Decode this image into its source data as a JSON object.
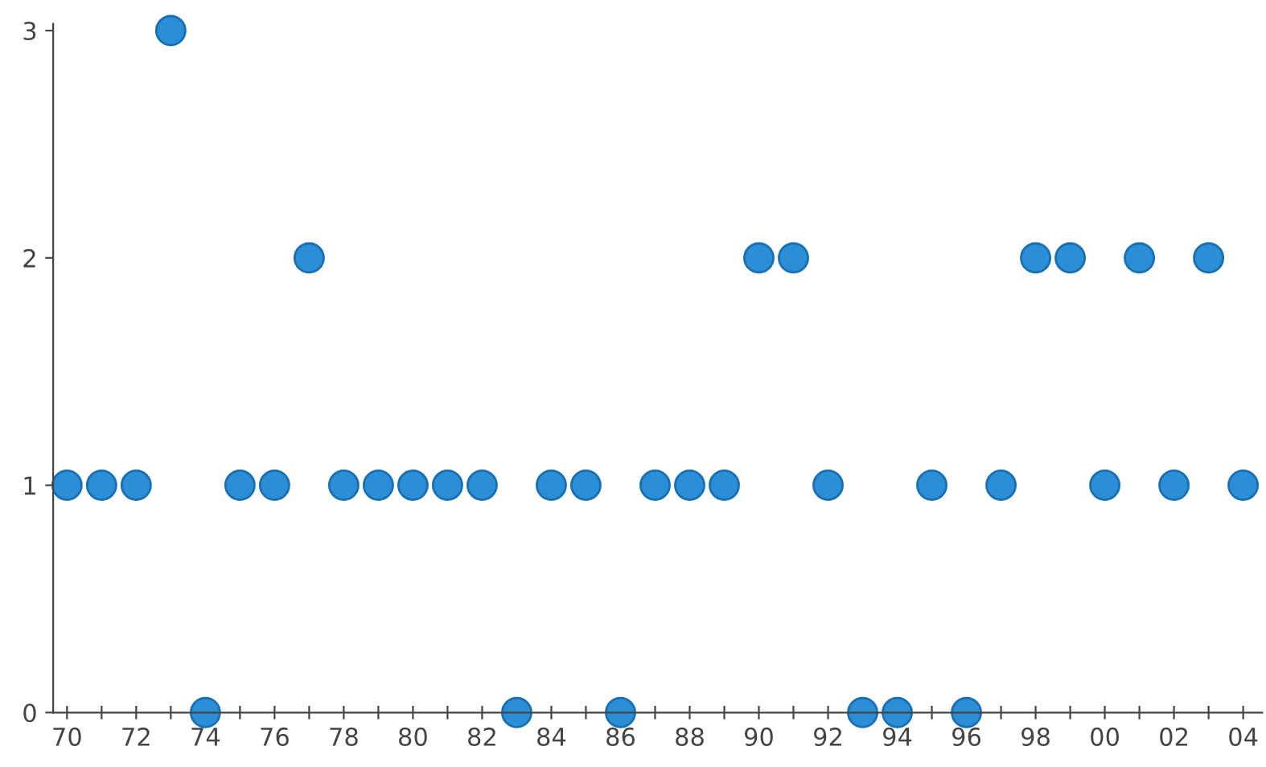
{
  "chart_data": {
    "type": "scatter",
    "categories": [
      "70",
      null,
      "72",
      null,
      "74",
      null,
      "76",
      null,
      "78",
      null,
      "80",
      null,
      "82",
      null,
      "84",
      null,
      "86",
      null,
      "88",
      null,
      "90",
      null,
      "92",
      null,
      "94",
      null,
      "96",
      null,
      "98",
      null,
      "00",
      null,
      "02",
      null,
      "04"
    ],
    "series": [
      {
        "color": "#2a8fd6",
        "values": [
          1,
          1,
          1,
          3,
          0,
          1,
          1,
          2,
          1,
          1,
          1,
          1,
          1,
          0,
          1,
          1,
          0,
          1,
          1,
          1,
          2,
          2,
          1,
          0,
          0,
          1,
          0,
          1,
          2,
          2,
          1,
          2,
          1,
          2,
          1
        ]
      }
    ],
    "ylim": [
      0,
      3.03
    ],
    "yticks": [
      0,
      1,
      2,
      3
    ],
    "marker": "circle",
    "grid": false,
    "legend": false
  }
}
